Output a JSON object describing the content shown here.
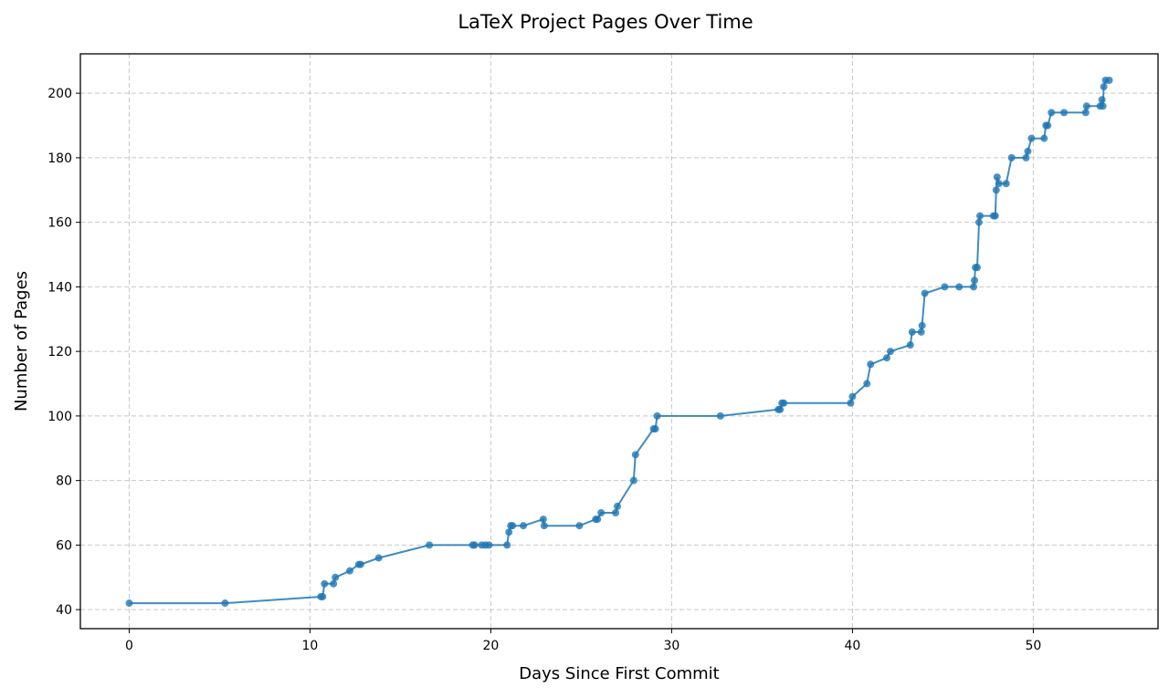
{
  "chart_data": {
    "type": "line",
    "title": "LaTeX Project Pages Over Time",
    "xlabel": "Days Since First Commit",
    "ylabel": "Number of Pages",
    "xlim": [
      -2.7,
      56.9
    ],
    "ylim": [
      34.1,
      212.2
    ],
    "xticks": [
      0,
      10,
      20,
      30,
      40,
      50
    ],
    "yticks": [
      40,
      60,
      80,
      100,
      120,
      140,
      160,
      180,
      200
    ],
    "grid": true,
    "color": "#1f77b4",
    "series": [
      {
        "name": "Pages",
        "x": [
          0,
          5.3,
          10.6,
          10.7,
          10.8,
          11.3,
          11.4,
          12.2,
          12.7,
          12.8,
          13.8,
          16.6,
          19.0,
          19.1,
          19.5,
          19.7,
          19.9,
          20.9,
          21.0,
          21.1,
          21.2,
          21.8,
          22.9,
          22.95,
          24.9,
          25.8,
          25.9,
          26.1,
          26.9,
          27.0,
          27.9,
          28.0,
          29.0,
          29.1,
          29.2,
          32.7,
          35.9,
          36.0,
          36.1,
          36.2,
          39.9,
          40.0,
          40.8,
          41.0,
          41.9,
          42.1,
          43.2,
          43.3,
          43.8,
          43.85,
          44.0,
          45.1,
          45.9,
          46.7,
          46.75,
          46.8,
          46.9,
          47.0,
          47.05,
          47.8,
          47.9,
          47.95,
          48.0,
          48.1,
          48.5,
          48.8,
          49.6,
          49.7,
          49.9,
          50.6,
          50.7,
          50.8,
          51.0,
          51.7,
          52.9,
          52.95,
          53.7,
          53.8,
          53.85,
          53.9,
          54.0,
          54.2
        ],
        "y": [
          42,
          42,
          44,
          44,
          48,
          48,
          50,
          52,
          54,
          54,
          56,
          60,
          60,
          60,
          60,
          60,
          60,
          60,
          64,
          66,
          66,
          66,
          68,
          66,
          66,
          68,
          68,
          70,
          70,
          72,
          80,
          88,
          96,
          96,
          100,
          100,
          102,
          102,
          104,
          104,
          104,
          106,
          110,
          116,
          118,
          120,
          122,
          126,
          126,
          128,
          138,
          140,
          140,
          140,
          142,
          146,
          146,
          160,
          162,
          162,
          162,
          170,
          174,
          172,
          172,
          180,
          180,
          182,
          186,
          186,
          190,
          190,
          194,
          194,
          194,
          196,
          196,
          198,
          196,
          202,
          204,
          204
        ]
      }
    ]
  }
}
